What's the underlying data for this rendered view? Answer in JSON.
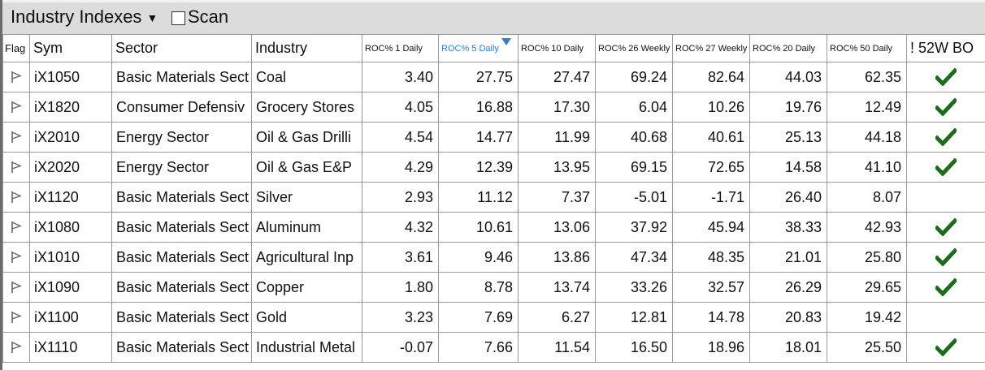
{
  "toolbar": {
    "title": "Industry Indexes",
    "title_caret": "▼",
    "scan_label": "Scan",
    "scan_checked": false
  },
  "columns": {
    "flag": "Flag",
    "sym": "Sym",
    "sector": "Sector",
    "industry": "Industry",
    "roc1d": "ROC% 1 Daily",
    "roc5d": "ROC% 5 Daily",
    "roc10d": "ROC% 10 Daily",
    "roc26w": "ROC% 26 Weekly",
    "roc27w": "ROC% 27 Weekly",
    "roc20d": "ROC% 20 Daily",
    "roc50d": "ROC% 50 Daily",
    "bo52w": "! 52W BO"
  },
  "sorted_column": "roc5d",
  "sort_direction": "descending",
  "colors": {
    "sort_accent": "#3a7dc4",
    "check_green": "#1e6b1e",
    "flag_gray": "#666666"
  },
  "icons": {
    "flag": "flag-outline-icon",
    "check": "checkmark-icon",
    "sort": "sort-descending-arrow-icon"
  },
  "rows": [
    {
      "sym": "iX1050",
      "sector": "Basic Materials Sect",
      "industry": "Coal",
      "roc1d": "3.40",
      "roc5d": "27.75",
      "roc10d": "27.47",
      "roc26w": "69.24",
      "roc27w": "82.64",
      "roc20d": "44.03",
      "roc50d": "62.35",
      "bo52w": true
    },
    {
      "sym": "iX1820",
      "sector": "Consumer Defensiv",
      "industry": "Grocery Stores",
      "roc1d": "4.05",
      "roc5d": "16.88",
      "roc10d": "17.30",
      "roc26w": "6.04",
      "roc27w": "10.26",
      "roc20d": "19.76",
      "roc50d": "12.49",
      "bo52w": true
    },
    {
      "sym": "iX2010",
      "sector": "Energy Sector",
      "industry": "Oil & Gas Drilli",
      "roc1d": "4.54",
      "roc5d": "14.77",
      "roc10d": "11.99",
      "roc26w": "40.68",
      "roc27w": "40.61",
      "roc20d": "25.13",
      "roc50d": "44.18",
      "bo52w": true
    },
    {
      "sym": "iX2020",
      "sector": "Energy Sector",
      "industry": "Oil & Gas E&P",
      "roc1d": "4.29",
      "roc5d": "12.39",
      "roc10d": "13.95",
      "roc26w": "69.15",
      "roc27w": "72.65",
      "roc20d": "14.58",
      "roc50d": "41.10",
      "bo52w": true
    },
    {
      "sym": "iX1120",
      "sector": "Basic Materials Sect",
      "industry": "Silver",
      "roc1d": "2.93",
      "roc5d": "11.12",
      "roc10d": "7.37",
      "roc26w": "-5.01",
      "roc27w": "-1.71",
      "roc20d": "26.40",
      "roc50d": "8.07",
      "bo52w": false
    },
    {
      "sym": "iX1080",
      "sector": "Basic Materials Sect",
      "industry": "Aluminum",
      "roc1d": "4.32",
      "roc5d": "10.61",
      "roc10d": "13.06",
      "roc26w": "37.92",
      "roc27w": "45.94",
      "roc20d": "38.33",
      "roc50d": "42.93",
      "bo52w": true
    },
    {
      "sym": "iX1010",
      "sector": "Basic Materials Sect",
      "industry": "Agricultural Inp",
      "roc1d": "3.61",
      "roc5d": "9.46",
      "roc10d": "13.86",
      "roc26w": "47.34",
      "roc27w": "48.35",
      "roc20d": "21.01",
      "roc50d": "25.80",
      "bo52w": true
    },
    {
      "sym": "iX1090",
      "sector": "Basic Materials Sect",
      "industry": "Copper",
      "roc1d": "1.80",
      "roc5d": "8.78",
      "roc10d": "13.74",
      "roc26w": "33.26",
      "roc27w": "32.57",
      "roc20d": "26.29",
      "roc50d": "29.65",
      "bo52w": true
    },
    {
      "sym": "iX1100",
      "sector": "Basic Materials Sect",
      "industry": "Gold",
      "roc1d": "3.23",
      "roc5d": "7.69",
      "roc10d": "6.27",
      "roc26w": "12.81",
      "roc27w": "14.78",
      "roc20d": "20.83",
      "roc50d": "19.42",
      "bo52w": false
    },
    {
      "sym": "iX1110",
      "sector": "Basic Materials Sect",
      "industry": "Industrial Metal",
      "roc1d": "-0.07",
      "roc5d": "7.66",
      "roc10d": "11.54",
      "roc26w": "16.50",
      "roc27w": "18.96",
      "roc20d": "18.01",
      "roc50d": "25.50",
      "bo52w": true
    }
  ]
}
